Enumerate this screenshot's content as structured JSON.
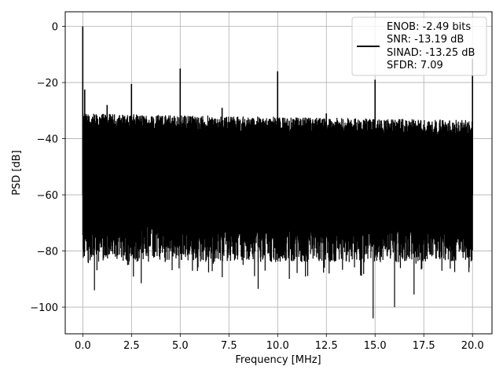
{
  "chart_data": {
    "type": "line",
    "title": "",
    "xlabel": "Frequency [MHz]",
    "ylabel": "PSD [dB]",
    "xlim": [
      -0.9,
      21.0
    ],
    "ylim": [
      -109.5,
      5.2
    ],
    "x_ticks": [
      0.0,
      2.5,
      5.0,
      7.5,
      10.0,
      12.5,
      15.0,
      17.5,
      20.0
    ],
    "x_tick_labels": [
      "0.0",
      "2.5",
      "5.0",
      "7.5",
      "10.0",
      "12.5",
      "15.0",
      "17.5",
      "20.0"
    ],
    "y_ticks": [
      0,
      -20,
      -40,
      -60,
      -80,
      -100
    ],
    "y_tick_labels": [
      "0",
      "−20",
      "−40",
      "−60",
      "−80",
      "−100"
    ],
    "grid": true,
    "legend_position": "top-right",
    "legend_lines": [
      "ENOB: -2.49 bits",
      "SNR: -13.19 dB",
      "SINAD: -13.25 dB",
      "SFDR: 7.09"
    ],
    "series": [
      {
        "color": "#000000",
        "noise_floor_upper_db": -34,
        "noise_floor_lower_db": -70,
        "noise_min_db": -104,
        "spikes": [
          {
            "x": 0.0,
            "y": 0.0
          },
          {
            "x": 0.1,
            "y": -22.5
          },
          {
            "x": 1.25,
            "y": -28.0
          },
          {
            "x": 2.5,
            "y": -20.5
          },
          {
            "x": 5.0,
            "y": -15.0
          },
          {
            "x": 7.15,
            "y": -29.0
          },
          {
            "x": 10.0,
            "y": -16.0
          },
          {
            "x": 12.5,
            "y": -31.0
          },
          {
            "x": 15.0,
            "y": -19.0
          },
          {
            "x": 20.0,
            "y": -11.5
          }
        ],
        "dips": [
          {
            "x": 0.6,
            "y": -94.0
          },
          {
            "x": 3.0,
            "y": -91.5
          },
          {
            "x": 9.0,
            "y": -93.5
          },
          {
            "x": 14.9,
            "y": -104.0
          },
          {
            "x": 16.0,
            "y": -100.0
          },
          {
            "x": 17.0,
            "y": -95.5
          }
        ]
      }
    ]
  }
}
